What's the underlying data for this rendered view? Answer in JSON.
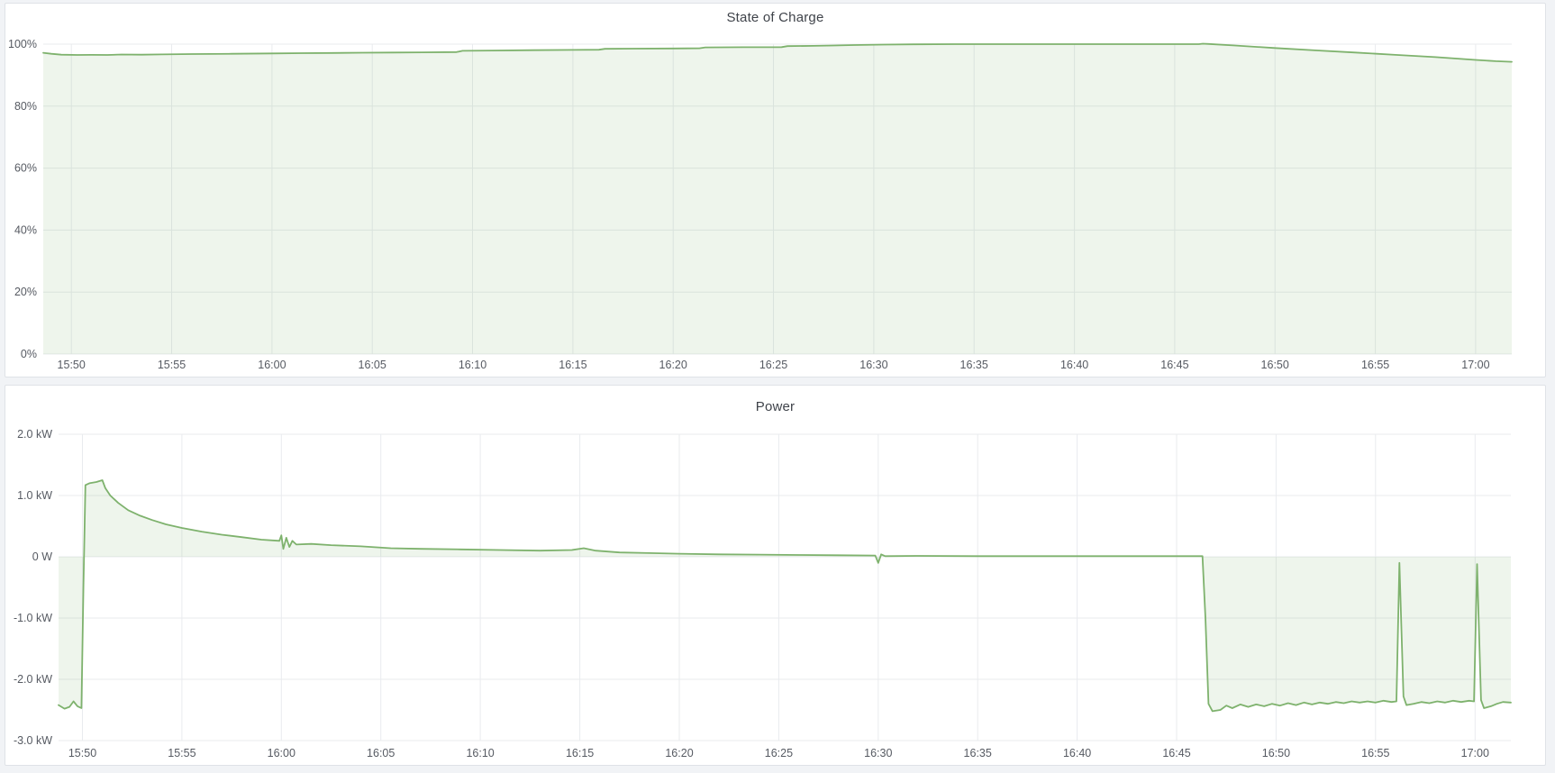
{
  "page": {
    "background_color": "#f1f3f6",
    "panel_background": "#ffffff",
    "panel_border_color": "#dfe2e7",
    "gridline_color": "#e9ebee",
    "tick_color": "#565a62",
    "title_color": "#3f434a",
    "accent_green": "#7eb26d"
  },
  "chart_data": [
    {
      "id": "soc",
      "type": "area",
      "title": "State of Charge",
      "x_type": "time",
      "x_domain": [
        48.6,
        121.8
      ],
      "y_domain": [
        0,
        100
      ],
      "grid": true,
      "legend": "none",
      "baseline": 0,
      "x_ticks": [
        {
          "m": 50,
          "label": "15:50"
        },
        {
          "m": 55,
          "label": "15:55"
        },
        {
          "m": 60,
          "label": "16:00"
        },
        {
          "m": 65,
          "label": "16:05"
        },
        {
          "m": 70,
          "label": "16:10"
        },
        {
          "m": 75,
          "label": "16:15"
        },
        {
          "m": 80,
          "label": "16:20"
        },
        {
          "m": 85,
          "label": "16:25"
        },
        {
          "m": 90,
          "label": "16:30"
        },
        {
          "m": 95,
          "label": "16:35"
        },
        {
          "m": 100,
          "label": "16:40"
        },
        {
          "m": 105,
          "label": "16:45"
        },
        {
          "m": 110,
          "label": "16:50"
        },
        {
          "m": 115,
          "label": "16:55"
        },
        {
          "m": 120,
          "label": "17:00"
        }
      ],
      "y_ticks": [
        {
          "v": 0,
          "label": "0%"
        },
        {
          "v": 20,
          "label": "20%"
        },
        {
          "v": 40,
          "label": "40%"
        },
        {
          "v": 60,
          "label": "60%"
        },
        {
          "v": 80,
          "label": "80%"
        },
        {
          "v": 100,
          "label": "100%"
        }
      ],
      "series": [
        {
          "color": "#7eb26d",
          "fill": "rgba(126,178,109,0.13)",
          "points": [
            [
              48.6,
              97.2
            ],
            [
              49.0,
              96.9
            ],
            [
              49.5,
              96.6
            ],
            [
              50.3,
              96.5
            ],
            [
              51.0,
              96.55
            ],
            [
              51.8,
              96.5
            ],
            [
              52.5,
              96.65
            ],
            [
              53.5,
              96.6
            ],
            [
              54.5,
              96.7
            ],
            [
              56.0,
              96.8
            ],
            [
              58.0,
              96.9
            ],
            [
              60.0,
              97.0
            ],
            [
              61.5,
              97.1
            ],
            [
              63.0,
              97.15
            ],
            [
              64.5,
              97.25
            ],
            [
              66.0,
              97.3
            ],
            [
              67.5,
              97.35
            ],
            [
              69.2,
              97.45
            ],
            [
              69.5,
              97.85
            ],
            [
              71.0,
              97.95
            ],
            [
              73.0,
              98.05
            ],
            [
              75.0,
              98.15
            ],
            [
              76.3,
              98.2
            ],
            [
              76.6,
              98.5
            ],
            [
              78.0,
              98.55
            ],
            [
              80.0,
              98.6
            ],
            [
              81.3,
              98.65
            ],
            [
              81.6,
              98.95
            ],
            [
              83.5,
              99.0
            ],
            [
              85.4,
              99.05
            ],
            [
              85.7,
              99.35
            ],
            [
              87.0,
              99.45
            ],
            [
              88.0,
              99.55
            ],
            [
              89.0,
              99.7
            ],
            [
              90.5,
              99.85
            ],
            [
              92.0,
              99.95
            ],
            [
              94.0,
              100.0
            ],
            [
              106.2,
              100.0
            ],
            [
              106.4,
              100.15
            ],
            [
              106.7,
              100.05
            ],
            [
              108.0,
              99.55
            ],
            [
              110.0,
              98.75
            ],
            [
              112.0,
              98.0
            ],
            [
              114.0,
              97.3
            ],
            [
              116.0,
              96.55
            ],
            [
              118.0,
              95.8
            ],
            [
              120.0,
              94.9
            ],
            [
              121.0,
              94.5
            ],
            [
              121.8,
              94.3
            ]
          ]
        }
      ]
    },
    {
      "id": "power",
      "type": "area",
      "title": "Power",
      "x_type": "time",
      "x_domain": [
        48.8,
        121.8
      ],
      "y_domain": [
        -3,
        2
      ],
      "grid": true,
      "legend": "none",
      "baseline": 0,
      "x_ticks": [
        {
          "m": 50,
          "label": "15:50"
        },
        {
          "m": 55,
          "label": "15:55"
        },
        {
          "m": 60,
          "label": "16:00"
        },
        {
          "m": 65,
          "label": "16:05"
        },
        {
          "m": 70,
          "label": "16:10"
        },
        {
          "m": 75,
          "label": "16:15"
        },
        {
          "m": 80,
          "label": "16:20"
        },
        {
          "m": 85,
          "label": "16:25"
        },
        {
          "m": 90,
          "label": "16:30"
        },
        {
          "m": 95,
          "label": "16:35"
        },
        {
          "m": 100,
          "label": "16:40"
        },
        {
          "m": 105,
          "label": "16:45"
        },
        {
          "m": 110,
          "label": "16:50"
        },
        {
          "m": 115,
          "label": "16:55"
        },
        {
          "m": 120,
          "label": "17:00"
        }
      ],
      "y_ticks": [
        {
          "v": -3,
          "label": "-3.0 kW"
        },
        {
          "v": -2,
          "label": "-2.0 kW"
        },
        {
          "v": -1,
          "label": "-1.0 kW"
        },
        {
          "v": 0,
          "label": "0 W"
        },
        {
          "v": 1,
          "label": "1.0 kW"
        },
        {
          "v": 2,
          "label": "2.0 kW"
        }
      ],
      "series": [
        {
          "color": "#7eb26d",
          "fill": "rgba(126,178,109,0.13)",
          "points": [
            [
              48.8,
              -2.42
            ],
            [
              49.1,
              -2.48
            ],
            [
              49.35,
              -2.45
            ],
            [
              49.55,
              -2.36
            ],
            [
              49.75,
              -2.44
            ],
            [
              49.95,
              -2.47
            ],
            [
              50.05,
              -0.5
            ],
            [
              50.15,
              1.17
            ],
            [
              50.35,
              1.2
            ],
            [
              50.7,
              1.22
            ],
            [
              51.0,
              1.25
            ],
            [
              51.15,
              1.12
            ],
            [
              51.4,
              1.0
            ],
            [
              51.8,
              0.88
            ],
            [
              52.3,
              0.76
            ],
            [
              52.9,
              0.67
            ],
            [
              53.5,
              0.6
            ],
            [
              54.2,
              0.53
            ],
            [
              55.0,
              0.47
            ],
            [
              56.0,
              0.41
            ],
            [
              57.0,
              0.36
            ],
            [
              58.0,
              0.32
            ],
            [
              59.0,
              0.28
            ],
            [
              59.9,
              0.26
            ],
            [
              60.0,
              0.35
            ],
            [
              60.1,
              0.13
            ],
            [
              60.25,
              0.31
            ],
            [
              60.4,
              0.16
            ],
            [
              60.55,
              0.26
            ],
            [
              60.75,
              0.2
            ],
            [
              61.5,
              0.21
            ],
            [
              62.5,
              0.19
            ],
            [
              64.0,
              0.17
            ],
            [
              65.5,
              0.14
            ],
            [
              67.0,
              0.13
            ],
            [
              69.0,
              0.12
            ],
            [
              71.0,
              0.11
            ],
            [
              73.0,
              0.1
            ],
            [
              74.6,
              0.11
            ],
            [
              75.2,
              0.14
            ],
            [
              75.8,
              0.1
            ],
            [
              77.0,
              0.07
            ],
            [
              78.5,
              0.06
            ],
            [
              80.0,
              0.05
            ],
            [
              82.0,
              0.04
            ],
            [
              84.0,
              0.035
            ],
            [
              86.0,
              0.03
            ],
            [
              88.0,
              0.025
            ],
            [
              89.85,
              0.02
            ],
            [
              90.0,
              -0.1
            ],
            [
              90.15,
              0.04
            ],
            [
              90.35,
              0.01
            ],
            [
              92.0,
              0.015
            ],
            [
              95.0,
              0.01
            ],
            [
              98.0,
              0.01
            ],
            [
              101.0,
              0.01
            ],
            [
              104.0,
              0.01
            ],
            [
              106.3,
              0.01
            ],
            [
              106.45,
              -1.0
            ],
            [
              106.6,
              -2.4
            ],
            [
              106.8,
              -2.52
            ],
            [
              107.2,
              -2.5
            ],
            [
              107.5,
              -2.43
            ],
            [
              107.8,
              -2.47
            ],
            [
              108.2,
              -2.41
            ],
            [
              108.6,
              -2.45
            ],
            [
              109.0,
              -2.41
            ],
            [
              109.4,
              -2.44
            ],
            [
              109.8,
              -2.4
            ],
            [
              110.2,
              -2.43
            ],
            [
              110.6,
              -2.39
            ],
            [
              111.0,
              -2.42
            ],
            [
              111.4,
              -2.38
            ],
            [
              111.8,
              -2.41
            ],
            [
              112.2,
              -2.38
            ],
            [
              112.6,
              -2.4
            ],
            [
              113.0,
              -2.37
            ],
            [
              113.4,
              -2.39
            ],
            [
              113.8,
              -2.36
            ],
            [
              114.2,
              -2.38
            ],
            [
              114.6,
              -2.36
            ],
            [
              115.0,
              -2.38
            ],
            [
              115.4,
              -2.35
            ],
            [
              115.8,
              -2.37
            ],
            [
              116.05,
              -2.36
            ],
            [
              116.2,
              -0.1
            ],
            [
              116.4,
              -2.28
            ],
            [
              116.55,
              -2.42
            ],
            [
              116.9,
              -2.4
            ],
            [
              117.3,
              -2.37
            ],
            [
              117.7,
              -2.39
            ],
            [
              118.1,
              -2.36
            ],
            [
              118.5,
              -2.38
            ],
            [
              118.9,
              -2.35
            ],
            [
              119.3,
              -2.37
            ],
            [
              119.7,
              -2.35
            ],
            [
              119.95,
              -2.36
            ],
            [
              120.1,
              -0.12
            ],
            [
              120.3,
              -2.34
            ],
            [
              120.45,
              -2.47
            ],
            [
              120.8,
              -2.44
            ],
            [
              121.1,
              -2.4
            ],
            [
              121.4,
              -2.37
            ],
            [
              121.8,
              -2.38
            ]
          ]
        }
      ]
    }
  ]
}
